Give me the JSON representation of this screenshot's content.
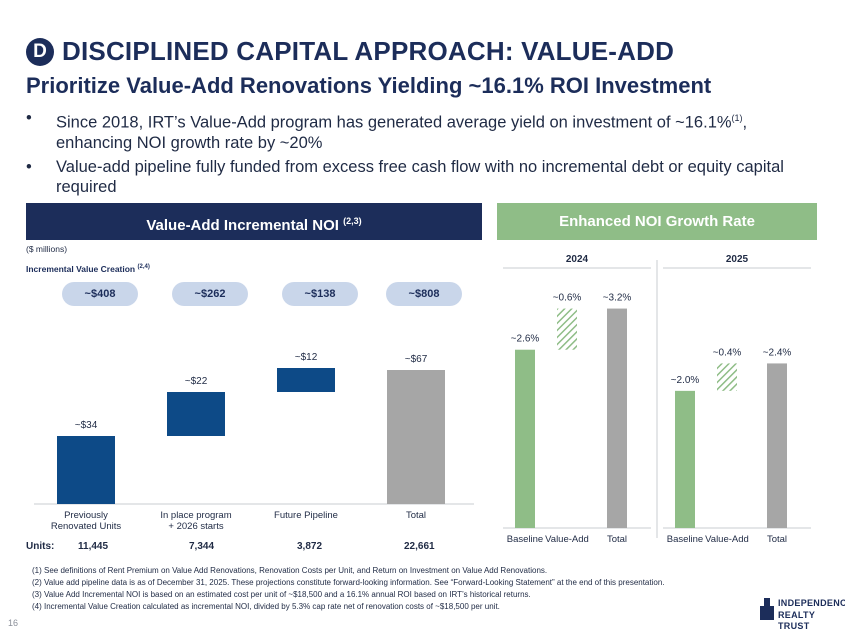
{
  "header": {
    "badge": "D",
    "title": "DISCIPLINED CAPITAL APPROACH: VALUE-ADD",
    "subtitle": "Prioritize Value-Add Renovations Yielding ~16.1% ROI Investment"
  },
  "bullets": [
    {
      "dot": "•",
      "text": "Since 2018, IRT’s Value-Add program has generated average yield on investment of ~16.1%",
      "sup": "(1)",
      "tail": ", enhancing NOI growth rate by ~20%"
    },
    {
      "dot": "•",
      "text": "Value-add pipeline fully funded from excess free cash flow with no incremental debt or equity capital required",
      "sup": "",
      "tail": ""
    }
  ],
  "panels": {
    "left_title": "Value-Add Incremental NOI",
    "left_sup": "(2,3)",
    "right_title": "Enhanced NOI Growth Rate"
  },
  "left_notes": {
    "units_note": "($ millions)",
    "ivc_label": "Incremental Value Creation",
    "ivc_sup": "(2,4)"
  },
  "units_label": "Units:",
  "footnotes": [
    "(1)   See definitions of Rent Premium on Value Add Renovations, Renovation Costs per Unit, and Return on Investment on Value Add Renovations.",
    "(2)   Value add pipeline data is as of December 31, 2025. These projections constitute forward-looking information. See “Forward-Looking Statement” at the end of this presentation.",
    "(3)   Value Add Incremental NOI is based on an estimated cost per unit of ~$18,500 and a 16.1% annual ROI based on IRT’s historical returns.",
    "(4)   Incremental Value Creation calculated as incremental NOI, divided by 5.3% cap rate net of renovation costs of ~$18,500 per unit."
  ],
  "page_number": "16",
  "logo": {
    "line1": "INDEPENDENCE",
    "line2": "REALTY TRUST"
  },
  "colors": {
    "navy": "#1c2d5a",
    "bar_blue": "#0d4a87",
    "grey": "#a6a6a6",
    "green": "#8fbd87",
    "pill": "#c9d6ea"
  },
  "chart_data": [
    {
      "type": "bar",
      "subtype": "waterfall",
      "title": "Value-Add Incremental NOI",
      "ylabel": "($ millions)",
      "ylim": [
        0,
        75
      ],
      "categories": [
        "Previously\nRenovated Units",
        "In place program\n+ 2026 starts",
        "Future Pipeline",
        "Total"
      ],
      "values": [
        34,
        22,
        12,
        67
      ],
      "labels": [
        "~$34",
        "~$22",
        "~$12",
        "~$67"
      ],
      "value_creation": [
        "~$408",
        "~$262",
        "~$138",
        "~$808"
      ],
      "units": [
        "11,445",
        "7,344",
        "3,872",
        "22,661"
      ]
    },
    {
      "type": "bar",
      "subtype": "waterfall",
      "title": "2024",
      "ylim": [
        0,
        3.5
      ],
      "categories": [
        "Baseline",
        "Value-Add",
        "Total"
      ],
      "values": [
        2.6,
        0.6,
        3.2
      ],
      "labels": [
        "~2.6%",
        "~0.6%",
        "~3.2%"
      ]
    },
    {
      "type": "bar",
      "subtype": "waterfall",
      "title": "2025",
      "ylim": [
        0,
        3.5
      ],
      "categories": [
        "Baseline",
        "Value-Add",
        "Total"
      ],
      "values": [
        2.0,
        0.4,
        2.4
      ],
      "labels": [
        "~2.0%",
        "~0.4%",
        "~2.4%"
      ]
    }
  ]
}
